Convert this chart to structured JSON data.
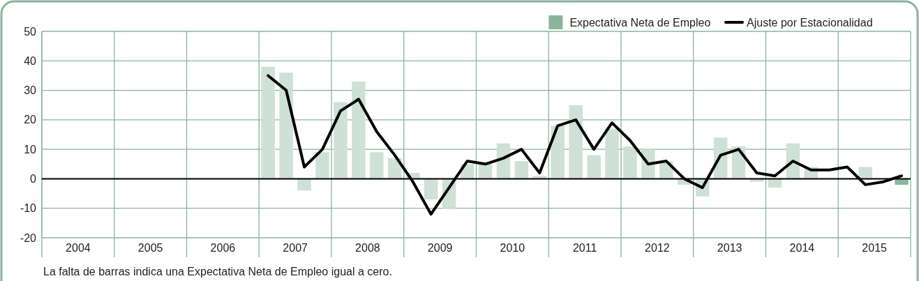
{
  "chart_data": {
    "type": "bar",
    "x": [
      2007.125,
      2007.375,
      2007.625,
      2007.875,
      2008.125,
      2008.375,
      2008.625,
      2008.875,
      2009.125,
      2009.375,
      2009.625,
      2009.875,
      2010.125,
      2010.375,
      2010.625,
      2010.875,
      2011.125,
      2011.375,
      2011.625,
      2011.875,
      2012.125,
      2012.375,
      2012.625,
      2012.875,
      2013.125,
      2013.375,
      2013.625,
      2013.875,
      2014.125,
      2014.375,
      2014.625,
      2014.875,
      2015.125,
      2015.375,
      2015.625,
      2015.875
    ],
    "series": [
      {
        "name": "Expectativa Neta de Empleo",
        "color": "#88b59c",
        "colors": [
          "#cfe0d6",
          "#cfe0d6",
          "#cfe0d6",
          "#cfe0d6",
          "#cfe0d6",
          "#cfe0d6",
          "#cfe0d6",
          "#cfe0d6",
          "#cfe0d6",
          "#cfe0d6",
          "#cfe0d6",
          "#cfe0d6",
          "#cfe0d6",
          "#cfe0d6",
          "#cfe0d6",
          "#cfe0d6",
          "#cfe0d6",
          "#cfe0d6",
          "#cfe0d6",
          "#cfe0d6",
          "#cfe0d6",
          "#cfe0d6",
          "#cfe0d6",
          "#cfe0d6",
          "#cfe0d6",
          "#cfe0d6",
          "#cfe0d6",
          "#cfe0d6",
          "#cfe0d6",
          "#cfe0d6",
          "#cfe0d6",
          "#cfe0d6",
          "#cfe0d6",
          "#cfe0d6",
          "#cfe0d6",
          "#88b59c"
        ],
        "values": [
          38,
          36,
          -4,
          9,
          26,
          33,
          9,
          7,
          2,
          -7,
          -10,
          5,
          5,
          12,
          6,
          1,
          18,
          25,
          8,
          17,
          11,
          10,
          6,
          -2,
          -6,
          14,
          11,
          -1,
          -3,
          12,
          4,
          0,
          0,
          4,
          0,
          -2
        ]
      },
      {
        "name": "Ajuste por Estacionalidad",
        "type": "line",
        "color": "#000000",
        "values": [
          35,
          30,
          4,
          10,
          23,
          27,
          16,
          8,
          -1,
          -12,
          -3,
          6,
          5,
          7,
          10,
          2,
          18,
          20,
          10,
          19,
          13,
          5,
          6,
          0,
          -3,
          8,
          10,
          2,
          1,
          6,
          3,
          3,
          4,
          -2,
          -1,
          1
        ]
      }
    ],
    "xlim": [
      2004,
      2016
    ],
    "xticks": [
      {
        "value": 2004,
        "label": null
      },
      {
        "value": 2004.5,
        "label": "2004"
      },
      {
        "value": 2005,
        "label": null
      },
      {
        "value": 2005.5,
        "label": "2005"
      },
      {
        "value": 2006,
        "label": null
      },
      {
        "value": 2006.5,
        "label": "2006"
      },
      {
        "value": 2007,
        "label": null
      },
      {
        "value": 2007.5,
        "label": "2007"
      },
      {
        "value": 2008,
        "label": null
      },
      {
        "value": 2008.5,
        "label": "2008"
      },
      {
        "value": 2009,
        "label": null
      },
      {
        "value": 2009.5,
        "label": "2009"
      },
      {
        "value": 2010,
        "label": null
      },
      {
        "value": 2010.5,
        "label": "2010"
      },
      {
        "value": 2011,
        "label": null
      },
      {
        "value": 2011.5,
        "label": "2011"
      },
      {
        "value": 2012,
        "label": null
      },
      {
        "value": 2012.5,
        "label": "2012"
      },
      {
        "value": 2013,
        "label": null
      },
      {
        "value": 2013.5,
        "label": "2013"
      },
      {
        "value": 2014,
        "label": null
      },
      {
        "value": 2014.5,
        "label": "2014"
      },
      {
        "value": 2015,
        "label": null
      },
      {
        "value": 2015.5,
        "label": "2015"
      },
      {
        "value": 2016,
        "label": null
      }
    ],
    "ylim": [
      -20,
      50
    ],
    "yticks": [
      -20,
      -10,
      0,
      10,
      20,
      30,
      40,
      50
    ],
    "grid": true,
    "ref_lines": [
      {
        "axis": "y",
        "value": 0,
        "color": "#000000"
      }
    ],
    "legend": "top right",
    "annotations": [
      "La falta de barras indica una Expectativa Neta de Empleo igual a cero."
    ]
  }
}
